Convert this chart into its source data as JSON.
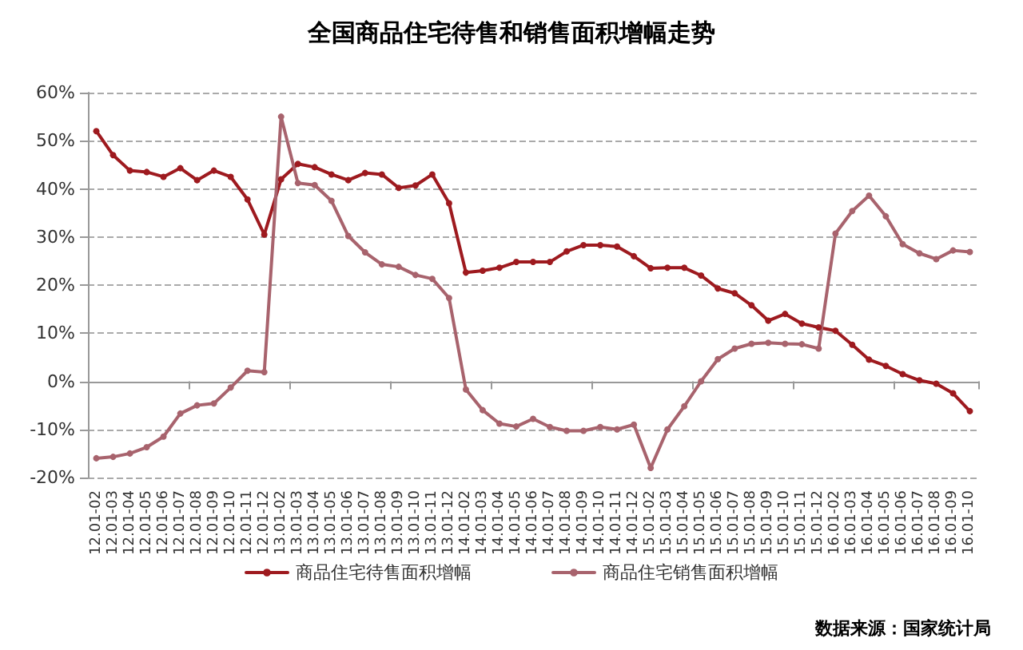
{
  "chart_data": {
    "type": "line",
    "title": "全国商品住宅待售和销售面积增幅走势",
    "categories": [
      "12.01-02",
      "12.01-03",
      "12.01-04",
      "12.01-05",
      "12.01-06",
      "12.01-07",
      "12.01-08",
      "12.01-09",
      "12.01-10",
      "12.01-11",
      "12.01-12",
      "13.01-02",
      "13.01-03",
      "13.01-04",
      "13.01-05",
      "13.01-06",
      "13.01-07",
      "13.01-08",
      "13.01-09",
      "13.01-10",
      "13.01-11",
      "13.01-12",
      "14.01-02",
      "14.01-03",
      "14.01-04",
      "14.01-05",
      "14.01-06",
      "14.01-07",
      "14.01-08",
      "14.01-09",
      "14.01-10",
      "14.01-11",
      "14.01-12",
      "15.01-02",
      "15.01-03",
      "15.01-04",
      "15.01-05",
      "15.01-06",
      "15.01-07",
      "15.01-08",
      "15.01-09",
      "15.01-10",
      "15.01-11",
      "15.01-12",
      "16.01-02",
      "16.01-03",
      "16.01-04",
      "16.01-05",
      "16.01-06",
      "16.01-07",
      "16.01-08",
      "16.01-09",
      "16.01-10"
    ],
    "series": [
      {
        "name": "商品住宅待售面积增幅",
        "color": "#9e1a1f",
        "values": [
          52,
          47,
          43.8,
          43.5,
          42.5,
          44.3,
          41.8,
          43.8,
          42.5,
          37.8,
          30.5,
          42,
          45.2,
          44.5,
          43,
          41.8,
          43.3,
          43,
          40.2,
          40.7,
          43,
          37,
          22.6,
          23,
          23.6,
          24.8,
          24.8,
          24.8,
          27,
          28.3,
          28.3,
          28,
          26,
          23.5,
          23.6,
          23.6,
          22,
          19.3,
          18.3,
          15.8,
          12.6,
          14,
          12,
          11.2,
          10.5,
          7.6,
          4.5,
          3.2,
          1.5,
          0.2,
          -0.5,
          -2.5,
          -6.2
        ]
      },
      {
        "name": "商品住宅销售面积增幅",
        "color": "#a8636d",
        "values": [
          -16,
          -15.7,
          -15,
          -13.7,
          -11.5,
          -6.7,
          -5,
          -4.6,
          -1.3,
          2.2,
          1.9,
          55,
          41.2,
          40.8,
          37.5,
          30.2,
          26.8,
          24.3,
          23.8,
          22.1,
          21.3,
          17.3,
          -1.7,
          -6,
          -8.8,
          -9.4,
          -7.8,
          -9.5,
          -10.3,
          -10.3,
          -9.5,
          -10,
          -9,
          -18,
          -10,
          -5.2,
          0,
          4.6,
          6.8,
          7.8,
          8,
          7.8,
          7.7,
          6.8,
          30.7,
          35.4,
          38.6,
          34.3,
          28.5,
          26.6,
          25.4,
          27.2,
          26.9
        ]
      }
    ],
    "ylim": [
      -20,
      60
    ],
    "yticks": [
      {
        "value": -20,
        "label": "-20%"
      },
      {
        "value": -10,
        "label": "-10%"
      },
      {
        "value": 0,
        "label": "0%"
      },
      {
        "value": 10,
        "label": "10%"
      },
      {
        "value": 20,
        "label": "20%"
      },
      {
        "value": 30,
        "label": "30%"
      },
      {
        "value": 40,
        "label": "40%"
      },
      {
        "value": 50,
        "label": "50%"
      },
      {
        "value": 60,
        "label": "60%"
      }
    ],
    "grid": "y",
    "legend": "bottom",
    "marker": "circle",
    "line_style": "solid",
    "annotations": [
      "数据来源：国家统计局"
    ]
  }
}
